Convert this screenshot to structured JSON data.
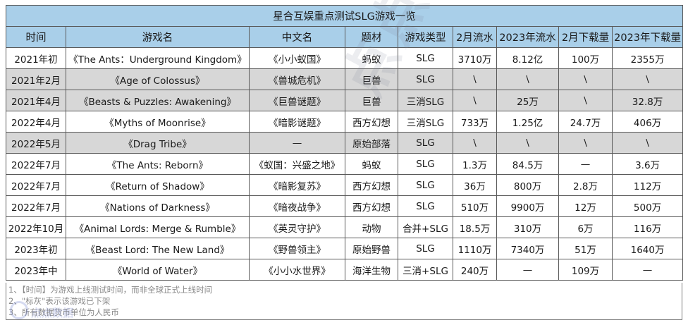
{
  "title": "星合互娱重点测试SLG游戏一览",
  "headers": [
    "时间",
    "游戏名",
    "中文名",
    "题材",
    "游戏类型",
    "2月流水",
    "2023年流水",
    "2月下载量",
    "2023年下载量"
  ],
  "rows": [
    {
      "gray": false,
      "cells": [
        "2021年初",
        "《The Ants：Underground Kingdom》",
        "《小小蚁国》",
        "蚂蚁",
        "SLG",
        "3710万",
        "8.12亿",
        "100万",
        "2355万"
      ]
    },
    {
      "gray": true,
      "cells": [
        "2021年2月",
        "《Age of Colossus》",
        "《兽城危机》",
        "巨兽",
        "SLG",
        "\\",
        "\\",
        "\\",
        "\\"
      ]
    },
    {
      "gray": true,
      "cells": [
        "2021年4月",
        "《Beasts & Puzzles: Awakening》",
        "《巨兽谜题》",
        "巨兽",
        "三消SLG",
        "\\",
        "25万",
        "\\",
        "32.8万"
      ]
    },
    {
      "gray": false,
      "cells": [
        "2022年4月",
        "《Myths of Moonrise》",
        "《暗影谜题》",
        "西方幻想",
        "三消SLG",
        "733万",
        "1.25亿",
        "24.7万",
        "406万"
      ]
    },
    {
      "gray": true,
      "cells": [
        "2022年5月",
        "《Drag Tribe》",
        "—",
        "原始部落",
        "SLG",
        "\\",
        "\\",
        "\\",
        "\\"
      ]
    },
    {
      "gray": false,
      "cells": [
        "2022年7月",
        "《The Ants: Reborn》",
        "《蚁国：兴盛之地》",
        "蚂蚁",
        "SLG",
        "1.3万",
        "84.5万",
        "—",
        "3.6万"
      ]
    },
    {
      "gray": false,
      "cells": [
        "2022年7月",
        "《Return of Shadow》",
        "《暗影复苏》",
        "西方幻想",
        "SLG",
        "36万",
        "800万",
        "2.8万",
        "112万"
      ]
    },
    {
      "gray": false,
      "cells": [
        "2022年7月",
        "《Nations of Darkness》",
        "《暗夜战争》",
        "西方幻想",
        "SLG",
        "510万",
        "9900万",
        "12万",
        "500万"
      ]
    },
    {
      "gray": false,
      "cells": [
        "2022年10月",
        "《Animal Lords: Merge & Rumble》",
        "《英灵守护》",
        "动物",
        "合并+SLG",
        "18.5万",
        "310万",
        "6万",
        "116万"
      ]
    },
    {
      "gray": false,
      "cells": [
        "2023年初",
        "《Beast Lord: The New Land》",
        "《野兽领主》",
        "原始野兽",
        "SLG",
        "1110万",
        "7340万",
        "51万",
        "1640万"
      ]
    },
    {
      "gray": false,
      "cells": [
        "2023年中",
        "《World of Water》",
        "《小小水世界》",
        "海洋生物",
        "三消+SLG",
        "240万",
        "—",
        "109万",
        "—"
      ]
    }
  ],
  "notes": [
    "1、【时间】为游戏上线测试时间，而非全球正式上线时间",
    "2、\"标灰\"表示该游戏已下架",
    "3、所有数据货币单位为人民币"
  ],
  "watermark": "点点数据",
  "brand": "点点数据"
}
